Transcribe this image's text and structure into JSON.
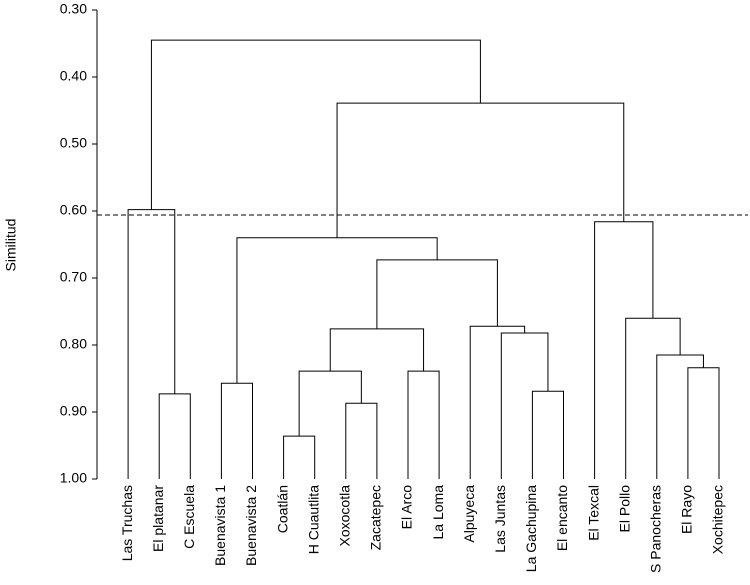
{
  "chart_data": {
    "type": "dendrogram",
    "y_label": "Similitud",
    "ylim": [
      0.3,
      1.0
    ],
    "yticks": [
      {
        "value": 0.3,
        "label": "0.30"
      },
      {
        "value": 0.4,
        "label": "0.40"
      },
      {
        "value": 0.5,
        "label": "0.50"
      },
      {
        "value": 0.6,
        "label": "0.60"
      },
      {
        "value": 0.7,
        "label": "0.70"
      },
      {
        "value": 0.8,
        "label": "0.80"
      },
      {
        "value": 0.9,
        "label": "0.90"
      },
      {
        "value": 1.0,
        "label": "1.00"
      }
    ],
    "threshold": 0.606,
    "color": "#000000",
    "tree": {
      "height": 0.345,
      "children": [
        {
          "height": 0.598,
          "children": [
            "Las  Truchas",
            {
              "height": 0.873,
              "children": [
                "El platanar",
                "C Escuela"
              ]
            }
          ]
        },
        {
          "height": 0.439,
          "children": [
            {
              "height": 0.64,
              "children": [
                {
                  "height": 0.857,
                  "children": [
                    "Buenavista 1",
                    "Buenavista 2"
                  ]
                },
                {
                  "height": 0.673,
                  "children": [
                    {
                      "height": 0.776,
                      "children": [
                        {
                          "height": 0.839,
                          "children": [
                            {
                              "height": 0.936,
                              "children": [
                                "Coatlán",
                                "H Cuautlita"
                              ]
                            },
                            {
                              "height": 0.887,
                              "children": [
                                "Xoxocotla",
                                "Zacatepec"
                              ]
                            }
                          ]
                        },
                        {
                          "height": 0.839,
                          "children": [
                            "El Arco",
                            "La Loma"
                          ]
                        }
                      ]
                    },
                    {
                      "height": 0.772,
                      "children": [
                        "Alpuyeca",
                        {
                          "height": 0.782,
                          "children": [
                            "Las Juntas",
                            {
                              "height": 0.869,
                              "children": [
                                "La Gachupina",
                                "El encanto"
                              ]
                            }
                          ]
                        }
                      ]
                    }
                  ]
                }
              ]
            },
            {
              "height": 0.616,
              "children": [
                "El Texcal",
                {
                  "height": 0.76,
                  "children": [
                    "El Pollo",
                    {
                      "height": 0.815,
                      "children": [
                        "S Panocheras",
                        {
                          "height": 0.834,
                          "children": [
                            "El Rayo",
                            "Xochitepec"
                          ]
                        }
                      ]
                    }
                  ]
                }
              ]
            }
          ]
        }
      ]
    }
  }
}
